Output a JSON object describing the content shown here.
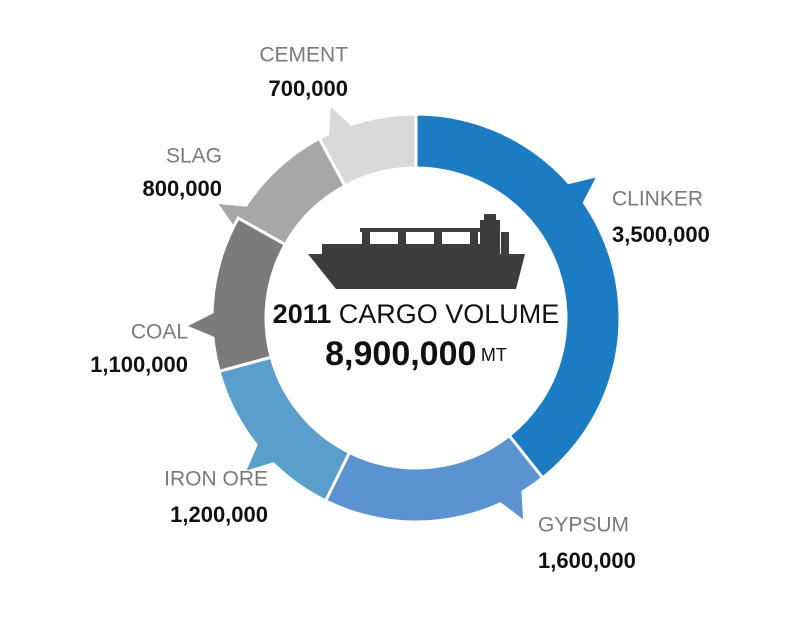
{
  "chart_data": {
    "type": "donut",
    "center": {
      "year": "2011",
      "text": "CARGO VOLUME",
      "total": "8,900,000",
      "unit": "MT"
    },
    "categories": [
      "CLINKER",
      "GYPSUM",
      "IRON ORE",
      "COAL",
      "SLAG",
      "CEMENT"
    ],
    "values": [
      3500000,
      1600000,
      1200000,
      1100000,
      800000,
      700000
    ],
    "value_labels": [
      "3,500,000",
      "1,600,000",
      "1,200,000",
      "1,100,000",
      "800,000",
      "700,000"
    ],
    "colors": [
      "#1b7cc3",
      "#5b93d1",
      "#5a9fcb",
      "#7b7b7b",
      "#a7a7a7",
      "#d9d9d9"
    ]
  }
}
